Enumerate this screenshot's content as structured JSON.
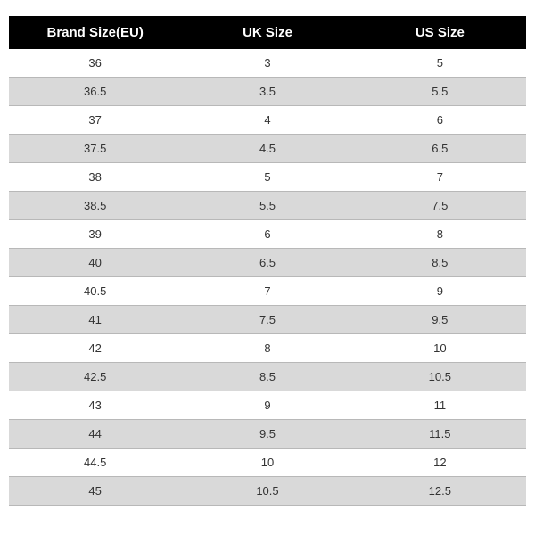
{
  "size_table": {
    "type": "table",
    "header_bg": "#000000",
    "header_color": "#ffffff",
    "row_bg_odd": "#ffffff",
    "row_bg_even": "#d9d9d9",
    "border_color": "#b8b8b8",
    "text_color": "#333333",
    "header_fontsize": 15,
    "cell_fontsize": 13,
    "columns": [
      "Brand Size(EU)",
      "UK Size",
      "US Size"
    ],
    "rows": [
      [
        "36",
        "3",
        "5"
      ],
      [
        "36.5",
        "3.5",
        "5.5"
      ],
      [
        "37",
        "4",
        "6"
      ],
      [
        "37.5",
        "4.5",
        "6.5"
      ],
      [
        "38",
        "5",
        "7"
      ],
      [
        "38.5",
        "5.5",
        "7.5"
      ],
      [
        "39",
        "6",
        "8"
      ],
      [
        "40",
        "6.5",
        "8.5"
      ],
      [
        "40.5",
        "7",
        "9"
      ],
      [
        "41",
        "7.5",
        "9.5"
      ],
      [
        "42",
        "8",
        "10"
      ],
      [
        "42.5",
        "8.5",
        "10.5"
      ],
      [
        "43",
        "9",
        "11"
      ],
      [
        "44",
        "9.5",
        "11.5"
      ],
      [
        "44.5",
        "10",
        "12"
      ],
      [
        "45",
        "10.5",
        "12.5"
      ]
    ]
  }
}
